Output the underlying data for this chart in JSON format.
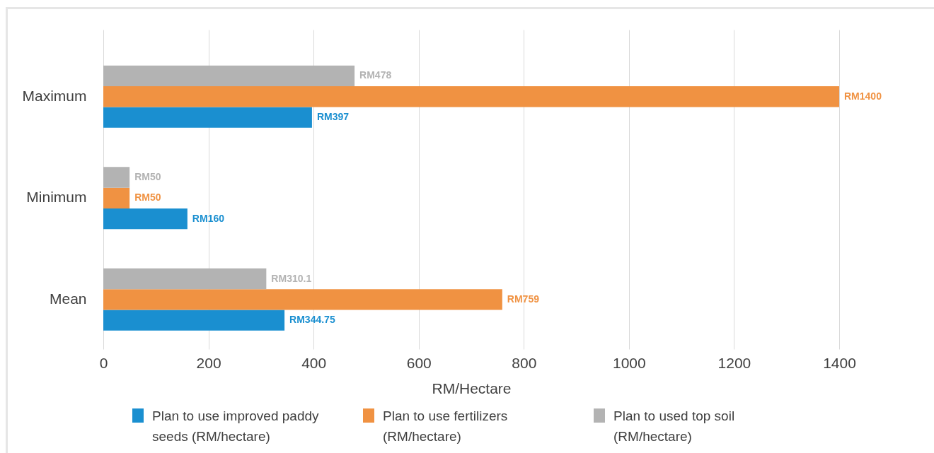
{
  "chart_data": {
    "type": "bar",
    "orientation": "horizontal",
    "categories": [
      "Maximum",
      "Minimum",
      "Mean"
    ],
    "series": [
      {
        "name": "Plan to use improved paddy seeds (RM/hectare)",
        "color": "#1a8fd0",
        "values": [
          397,
          160,
          344.75
        ],
        "value_labels": [
          "RM397",
          "RM160",
          "RM344.75"
        ]
      },
      {
        "name": "Plan to use fertilizers (RM/hectare)",
        "color": "#f09242",
        "values": [
          1400,
          50,
          759
        ],
        "value_labels": [
          "RM1400",
          "RM50",
          "RM759"
        ]
      },
      {
        "name": "Plan to used top soil (RM/hectare)",
        "color": "#b3b3b3",
        "values": [
          478,
          50,
          310.1
        ],
        "value_labels": [
          "RM478",
          "RM50",
          "RM310.1"
        ]
      }
    ],
    "xlabel": "RM/Hectare",
    "xlim": [
      0,
      1400
    ],
    "xticks": [
      0,
      200,
      400,
      600,
      800,
      1000,
      1200,
      1400
    ],
    "grid": "x",
    "legend": "bottom"
  }
}
